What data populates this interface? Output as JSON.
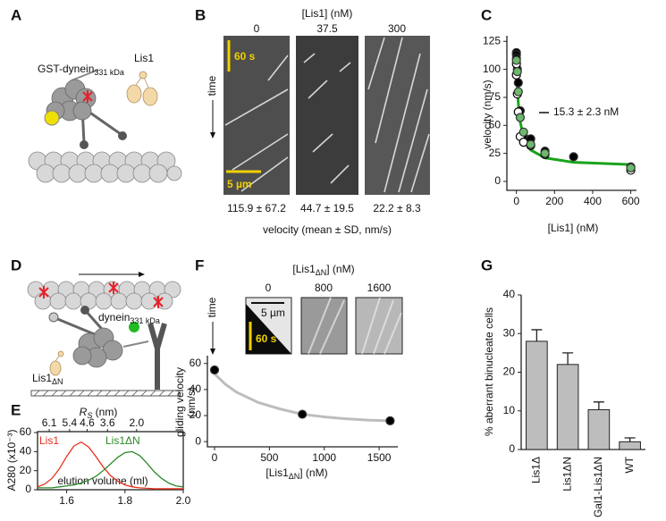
{
  "labels": [
    "A",
    "B",
    "C",
    "D",
    "E",
    "F",
    "G"
  ],
  "panel_a": {
    "dynein": "GST-dynein",
    "dynein_sub": "331 kDa",
    "lis1": "Lis1"
  },
  "panel_b": {
    "title": "[Lis1] (nM)",
    "conditions": [
      "0",
      "37.5",
      "300"
    ],
    "time_bar": "60 s",
    "length_bar": "5 µm",
    "time": "time",
    "velocities": [
      "115.9 ± 67.2",
      "44.7 ± 19.5",
      "22.2 ± 8.3"
    ],
    "xlabel": "velocity (mean ± SD, nm/s)"
  },
  "panel_d": {
    "dynein": "dynein",
    "dynein_sub": "331 kDa",
    "lis1": "Lis1",
    "lis1_sub": "ΔN"
  },
  "panel_f": {
    "title": [
      "[Lis1",
      "ΔN",
      "] (nM)"
    ],
    "conditions": [
      "0",
      "800",
      "1600"
    ],
    "length_bar": "5 µm",
    "time_bar": "60 s",
    "time": "time"
  },
  "chart_data": [
    {
      "type": "scatter",
      "xlabel": "[Lis1] (nM)",
      "ylabel": "velocity (nm/s)",
      "annotation": "15.3 ± 2.3 nM",
      "xlim": [
        -50,
        630
      ],
      "ylim": [
        -8,
        130
      ],
      "xticks": [
        0,
        200,
        400,
        600
      ],
      "yticks": [
        0,
        25,
        50,
        75,
        100,
        125
      ],
      "series": [
        {
          "marker": "filled",
          "color": "#000000",
          "x": [
            0,
            0,
            0,
            5,
            10,
            20,
            37.5,
            75,
            150,
            300,
            600
          ],
          "values": [
            115,
            113,
            110,
            100,
            88,
            63,
            40,
            38,
            27,
            22,
            13
          ]
        },
        {
          "marker": "open",
          "color": "#000000",
          "x": [
            0,
            0,
            5,
            10,
            20,
            37.5,
            75,
            150,
            600
          ],
          "values": [
            105,
            95,
            78,
            62,
            40,
            35,
            32,
            24,
            10
          ]
        },
        {
          "marker": "filled",
          "color": "#6cb86c",
          "x": [
            0,
            5,
            10,
            20,
            37.5,
            75,
            150,
            600
          ],
          "values": [
            108,
            98,
            80,
            57,
            44,
            33,
            25,
            12
          ]
        }
      ],
      "fit": {
        "color": "#1aa31a",
        "x": [
          0,
          5,
          10,
          20,
          40,
          75,
          150,
          300,
          600
        ],
        "values": [
          110,
          85,
          70,
          53,
          38,
          28,
          21,
          17,
          15
        ]
      }
    },
    {
      "type": "line",
      "xlabel": "elution volume (ml)",
      "ylabel": "A280 (x10⁻³)",
      "top_label": [
        "R",
        "S",
        " (nm)"
      ],
      "xlim": [
        1.5,
        2.0
      ],
      "ylim": [
        0,
        61
      ],
      "xticks": [
        1.6,
        1.8,
        {
          "value": 2.0,
          "label": "2.0"
        }
      ],
      "yticks": [
        0,
        20,
        40,
        60
      ],
      "top_ticks": [
        {
          "value": 1.54,
          "label": "6.1"
        },
        {
          "value": 1.61,
          "label": "5.4"
        },
        {
          "value": 1.67,
          "label": "4.6"
        },
        {
          "value": 1.74,
          "label": "3.6"
        },
        {
          "value": 1.84,
          "label": "2.0"
        }
      ],
      "x": [
        1.5,
        1.525,
        1.55,
        1.575,
        1.6,
        1.625,
        1.65,
        1.675,
        1.7,
        1.725,
        1.75,
        1.775,
        1.8,
        1.825,
        1.85,
        1.875,
        1.9,
        1.925,
        1.95,
        1.975,
        2.0
      ],
      "series": [
        {
          "name": "Lis1",
          "color": "#e8301c",
          "values": [
            3,
            6,
            12,
            22,
            35,
            46,
            50,
            45,
            35,
            24,
            15,
            9,
            5,
            3,
            2,
            1.5,
            1,
            1,
            1,
            1,
            1
          ]
        },
        {
          "name": "Lis1ΔN",
          "color": "#2a8a2a",
          "values": [
            2,
            2,
            2,
            3,
            4,
            5,
            7,
            10,
            14,
            20,
            27,
            34,
            39,
            40,
            36,
            28,
            19,
            12,
            7,
            4,
            3
          ]
        }
      ]
    },
    {
      "type": "scatter",
      "xlabel": [
        "[Lis1",
        "ΔN",
        "] (nM)"
      ],
      "ylabel": [
        "gliding velocity",
        "(nm/s)"
      ],
      "xlim": [
        -65,
        1670
      ],
      "ylim": [
        -4,
        66
      ],
      "xticks": [
        0,
        500,
        1000,
        1500
      ],
      "yticks": [
        0,
        20,
        40,
        60
      ],
      "series": [
        {
          "marker": "filled",
          "color": "#000000",
          "x": [
            0,
            800,
            1600
          ],
          "values": [
            55,
            21,
            16
          ],
          "errors": [
            3,
            1,
            1
          ]
        }
      ],
      "fit": {
        "color": "#bdbdbd",
        "x": [
          0,
          100,
          200,
          400,
          600,
          800,
          1000,
          1200,
          1400,
          1600
        ],
        "values": [
          52,
          44,
          38,
          30,
          25,
          21,
          19,
          17.5,
          16.5,
          16
        ]
      }
    },
    {
      "type": "bar",
      "ylabel": "% aberrant binucleate cells",
      "ylim": [
        0,
        40
      ],
      "yticks": [
        0,
        10,
        20,
        30,
        40
      ],
      "categories": [
        "Lis1Δ",
        "Lis1ΔN",
        "Gal1-Lis1ΔN",
        "WT"
      ],
      "values": [
        28,
        22,
        10.3,
        2
      ],
      "errors": [
        3,
        3,
        2,
        1
      ],
      "color": "#bdbdbd"
    }
  ]
}
